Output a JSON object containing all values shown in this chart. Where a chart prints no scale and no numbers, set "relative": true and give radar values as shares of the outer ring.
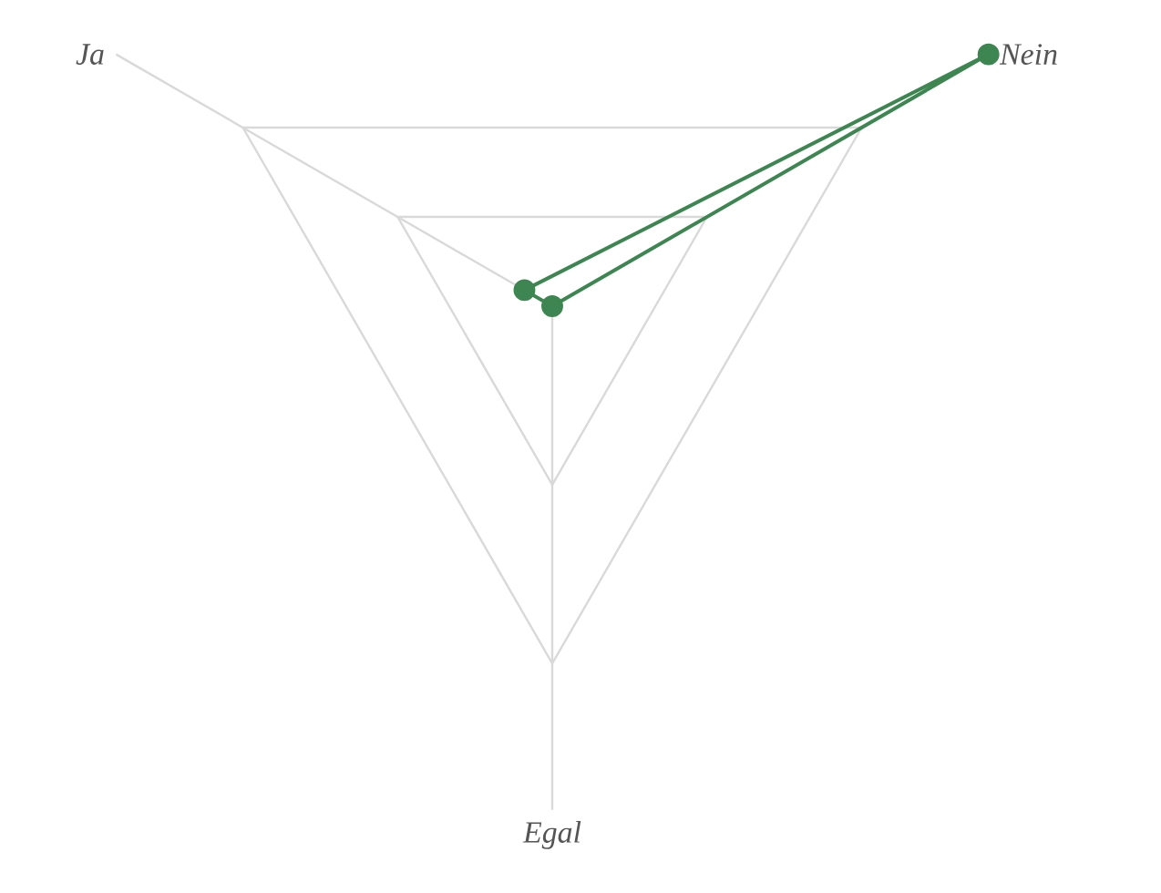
{
  "chart_data": {
    "type": "radar",
    "relative": true,
    "categories": [
      "Ja",
      "Nein",
      "Egal"
    ],
    "series": [
      {
        "color": "#3d8551",
        "values": [
          0.09,
          1.41,
          0
        ]
      }
    ],
    "grid": true,
    "marker": "circle",
    "line_style": "solid"
  }
}
